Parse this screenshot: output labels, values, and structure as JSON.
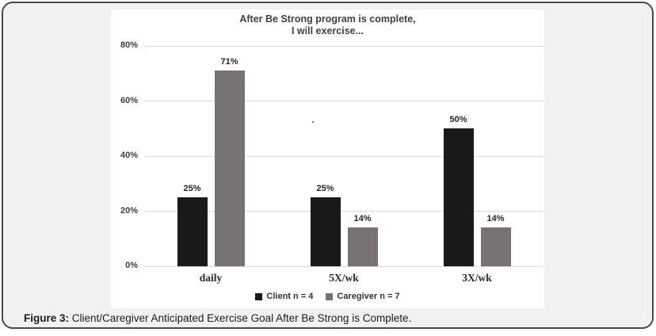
{
  "figure": {
    "caption_prefix": "Figure 3:",
    "caption_text": " Client/Caregiver Anticipated Exercise Goal After Be Strong is Complete."
  },
  "chart_data": {
    "type": "bar",
    "title": "After Be Strong program is complete, I will exercise...",
    "title_line1": "After Be Strong program is complete,",
    "title_line2": "I will exercise...",
    "categories": [
      "daily",
      "5X/wk",
      "3X/wk"
    ],
    "series": [
      {
        "name": "Client n = 4",
        "color": "#191919",
        "values": [
          25,
          25,
          50
        ],
        "labels": [
          "25%",
          "25%",
          "50%"
        ]
      },
      {
        "name": "Caregiver n = 7",
        "color": "#777372",
        "values": [
          71,
          14,
          14
        ],
        "labels": [
          "71%",
          "14%",
          "14%"
        ]
      }
    ],
    "xlabel": "",
    "ylabel": "",
    "ylim": [
      0,
      80
    ],
    "ytick_values": [
      0,
      20,
      40,
      60,
      80
    ],
    "ytick_labels": [
      "0%",
      "20%",
      "40%",
      "60%",
      "80%"
    ],
    "grid": true,
    "legend_position": "bottom"
  },
  "colors": {
    "box_background": "#f0f1f0",
    "box_border": "#4a4a4a",
    "panel_background": "#ffffff",
    "gridline": "#dcdcdc",
    "client_bar": "#191919",
    "caregiver_bar": "#777372"
  }
}
